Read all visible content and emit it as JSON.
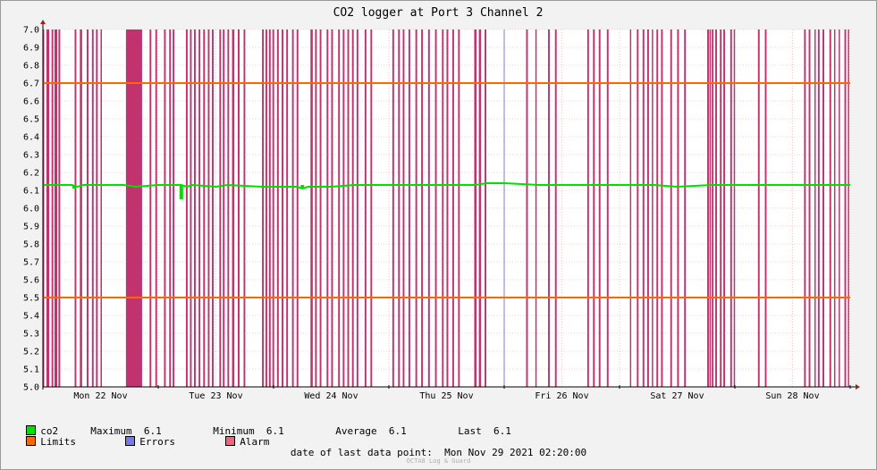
{
  "chart_data": {
    "type": "line",
    "title": "CO2 logger at Port 3 Channel 2",
    "ylim": [
      5.0,
      7.0
    ],
    "y_ticks": [
      "5.0",
      "5.1",
      "5.2",
      "5.3",
      "5.4",
      "5.5",
      "5.6",
      "5.7",
      "5.8",
      "5.9",
      "6.0",
      "6.1",
      "6.2",
      "6.3",
      "6.4",
      "6.5",
      "6.6",
      "6.7",
      "6.8",
      "6.9",
      "7.0"
    ],
    "x_range_days": [
      0,
      7
    ],
    "x_ticks": [
      {
        "label": "Mon 22 Nov",
        "day": 0.5
      },
      {
        "label": "Tue 23 Nov",
        "day": 1.5
      },
      {
        "label": "Wed 24 Nov",
        "day": 2.5
      },
      {
        "label": "Thu 25 Nov",
        "day": 3.5
      },
      {
        "label": "Fri 26 Nov",
        "day": 4.5
      },
      {
        "label": "Sat 27 Nov",
        "day": 5.5
      },
      {
        "label": "Sun 28 Nov",
        "day": 6.5
      }
    ],
    "limits": [
      5.5,
      6.7
    ],
    "series": [
      {
        "name": "co2",
        "color": "#00e000",
        "points": [
          [
            0.0,
            6.13
          ],
          [
            0.25,
            6.13
          ],
          [
            0.3,
            6.12
          ],
          [
            0.35,
            6.13
          ],
          [
            0.5,
            6.13
          ],
          [
            0.7,
            6.13
          ],
          [
            0.8,
            6.12
          ],
          [
            1.0,
            6.13
          ],
          [
            1.2,
            6.13
          ],
          [
            1.25,
            6.12
          ],
          [
            1.3,
            6.13
          ],
          [
            1.5,
            6.12
          ],
          [
            1.6,
            6.13
          ],
          [
            1.9,
            6.12
          ],
          [
            2.1,
            6.12
          ],
          [
            2.2,
            6.12
          ],
          [
            2.25,
            6.11
          ],
          [
            2.3,
            6.12
          ],
          [
            2.5,
            6.12
          ],
          [
            2.7,
            6.13
          ],
          [
            3.0,
            6.13
          ],
          [
            3.5,
            6.13
          ],
          [
            3.75,
            6.13
          ],
          [
            3.85,
            6.14
          ],
          [
            4.0,
            6.14
          ],
          [
            4.3,
            6.13
          ],
          [
            4.6,
            6.13
          ],
          [
            5.0,
            6.13
          ],
          [
            5.3,
            6.13
          ],
          [
            5.5,
            6.12
          ],
          [
            5.8,
            6.13
          ],
          [
            6.0,
            6.13
          ],
          [
            6.3,
            6.13
          ],
          [
            6.6,
            6.13
          ],
          [
            7.0,
            6.13
          ]
        ],
        "dips": [
          [
            0.27,
            6.11
          ],
          [
            1.2,
            6.05
          ],
          [
            2.25,
            6.11
          ]
        ]
      }
    ],
    "alarm_bands_days": [
      [
        0.0,
        0.01
      ],
      [
        0.03,
        0.055
      ],
      [
        0.075,
        0.09
      ],
      [
        0.1,
        0.125
      ],
      [
        0.135,
        0.15
      ],
      [
        0.275,
        0.29
      ],
      [
        0.32,
        0.34
      ],
      [
        0.38,
        0.395
      ],
      [
        0.425,
        0.44
      ],
      [
        0.46,
        0.475
      ],
      [
        0.5,
        0.51
      ],
      [
        0.72,
        0.86
      ],
      [
        0.925,
        0.94
      ],
      [
        0.975,
        0.99
      ],
      [
        1.05,
        1.065
      ],
      [
        1.095,
        1.11
      ],
      [
        1.125,
        1.14
      ],
      [
        1.24,
        1.255
      ],
      [
        1.275,
        1.29
      ],
      [
        1.31,
        1.325
      ],
      [
        1.35,
        1.365
      ],
      [
        1.39,
        1.405
      ],
      [
        1.43,
        1.445
      ],
      [
        1.465,
        1.48
      ],
      [
        1.53,
        1.545
      ],
      [
        1.56,
        1.575
      ],
      [
        1.6,
        1.615
      ],
      [
        1.64,
        1.66
      ],
      [
        1.69,
        1.705
      ],
      [
        1.74,
        1.755
      ],
      [
        1.9,
        1.915
      ],
      [
        1.93,
        1.945
      ],
      [
        1.96,
        1.975
      ],
      [
        1.99,
        2.005
      ],
      [
        2.03,
        2.045
      ],
      [
        2.07,
        2.085
      ],
      [
        2.11,
        2.125
      ],
      [
        2.16,
        2.175
      ],
      [
        2.2,
        2.215
      ],
      [
        2.32,
        2.34
      ],
      [
        2.36,
        2.375
      ],
      [
        2.4,
        2.415
      ],
      [
        2.46,
        2.475
      ],
      [
        2.5,
        2.515
      ],
      [
        2.56,
        2.575
      ],
      [
        2.6,
        2.615
      ],
      [
        2.64,
        2.655
      ],
      [
        2.68,
        2.695
      ],
      [
        2.72,
        2.735
      ],
      [
        2.79,
        2.805
      ],
      [
        2.84,
        2.855
      ],
      [
        3.03,
        3.045
      ],
      [
        3.08,
        3.095
      ],
      [
        3.12,
        3.135
      ],
      [
        3.17,
        3.185
      ],
      [
        3.23,
        3.245
      ],
      [
        3.28,
        3.295
      ],
      [
        3.34,
        3.355
      ],
      [
        3.4,
        3.415
      ],
      [
        3.46,
        3.475
      ],
      [
        3.5,
        3.515
      ],
      [
        3.55,
        3.565
      ],
      [
        3.6,
        3.615
      ],
      [
        3.74,
        3.76
      ],
      [
        3.78,
        3.8
      ],
      [
        3.83,
        3.845
      ],
      [
        4.19,
        4.205
      ],
      [
        4.27,
        4.28
      ],
      [
        4.38,
        4.395
      ],
      [
        4.44,
        4.455
      ],
      [
        4.72,
        4.735
      ],
      [
        4.77,
        4.785
      ],
      [
        4.82,
        4.835
      ],
      [
        4.89,
        4.905
      ],
      [
        5.09,
        5.1
      ],
      [
        5.15,
        5.165
      ],
      [
        5.2,
        5.215
      ],
      [
        5.24,
        5.255
      ],
      [
        5.28,
        5.29
      ],
      [
        5.32,
        5.335
      ],
      [
        5.36,
        5.375
      ],
      [
        5.44,
        5.455
      ],
      [
        5.5,
        5.515
      ],
      [
        5.56,
        5.575
      ],
      [
        5.76,
        5.775
      ],
      [
        5.78,
        5.79
      ],
      [
        5.8,
        5.815
      ],
      [
        5.83,
        5.845
      ],
      [
        5.87,
        5.885
      ],
      [
        5.9,
        5.915
      ],
      [
        5.96,
        5.975
      ],
      [
        5.99,
        6.0
      ],
      [
        6.2,
        6.215
      ],
      [
        6.26,
        6.275
      ],
      [
        6.6,
        6.615
      ],
      [
        6.64,
        6.655
      ],
      [
        6.69,
        6.7
      ],
      [
        6.72,
        6.735
      ],
      [
        6.76,
        6.775
      ],
      [
        6.82,
        6.835
      ],
      [
        6.86,
        6.87
      ],
      [
        6.9,
        6.91
      ],
      [
        6.95,
        6.965
      ],
      [
        6.98,
        6.99
      ]
    ],
    "error_lines_days": [
      4.0
    ]
  },
  "legend": {
    "co2": {
      "label": "co2",
      "color": "#00e000"
    },
    "stats": {
      "maximum_label": "Maximum",
      "maximum_value": "6.1",
      "minimum_label": "Minimum",
      "minimum_value": "6.1",
      "average_label": "Average",
      "average_value": "6.1",
      "last_label": "Last",
      "last_value": "6.1"
    },
    "limits": {
      "label": "Limits",
      "color": "#ff6600"
    },
    "errors": {
      "label": "Errors",
      "color": "#7777ee"
    },
    "alarm": {
      "label": "Alarm",
      "color": "#ee6677"
    }
  },
  "colors": {
    "alarm_fill": "#c2326f",
    "limit_line": "#ff6600",
    "error_line": "#8a7ac0",
    "grid": "#f3a0a0",
    "axis": "#000000",
    "arrow": "#a02020",
    "plot_bg": "#ffffff"
  },
  "footer": {
    "date_label": "date of last data point:",
    "date_value": "Mon Nov 29 2021 02:20:00",
    "watermark": "OCTA8 Log & Guard"
  }
}
